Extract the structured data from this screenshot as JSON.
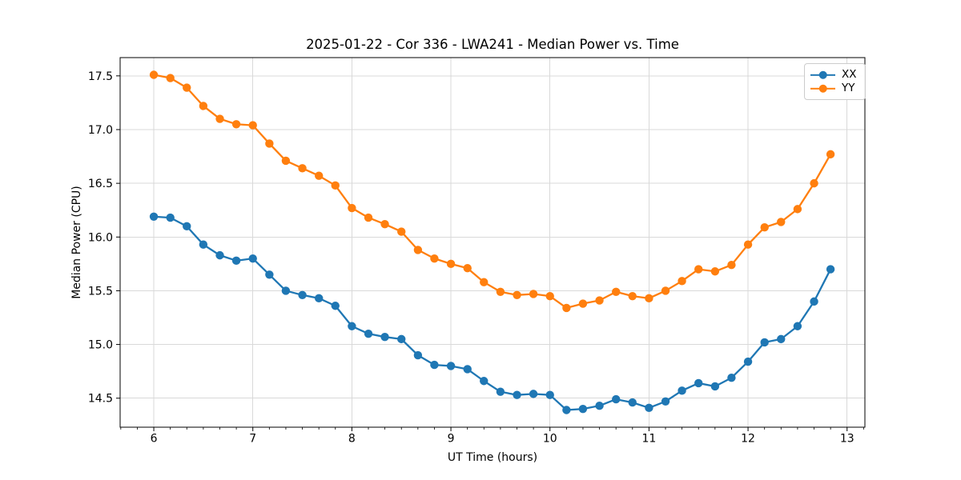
{
  "figure": {
    "title": "2025-01-22 - Cor 336 - LWA241 - Median Power vs. Time",
    "xlabel": "UT Time (hours)",
    "ylabel": "Median Power (CPU)"
  },
  "colors": {
    "background": "#ffffff",
    "grid": "#d9d9d9",
    "spine": "#000000",
    "tick": "#000000",
    "text": "#000000",
    "legend_border": "#cccccc",
    "series_xx": "#1f77b4",
    "series_yy": "#ff7f0e"
  },
  "chart_data": {
    "type": "line",
    "title": "2025-01-22 - Cor 336 - LWA241 - Median Power vs. Time",
    "xlabel": "UT Time (hours)",
    "ylabel": "Median Power (CPU)",
    "xlim": [
      5.66,
      13.18
    ],
    "ylim": [
      14.23,
      17.67
    ],
    "xticks": [
      6,
      7,
      8,
      9,
      10,
      11,
      12,
      13
    ],
    "xtick_labels": [
      "6",
      "7",
      "8",
      "9",
      "10",
      "11",
      "12",
      "13"
    ],
    "yticks": [
      14.5,
      15.0,
      15.5,
      16.0,
      16.5,
      17.0,
      17.5
    ],
    "ytick_labels": [
      "14.5",
      "15.0",
      "15.5",
      "16.0",
      "16.5",
      "17.0",
      "17.5"
    ],
    "x_minor_tick_step": 0.166667,
    "grid": true,
    "legend_position": "upper right",
    "marker": "o",
    "x": [
      6.0,
      6.167,
      6.333,
      6.5,
      6.667,
      6.833,
      7.0,
      7.167,
      7.333,
      7.5,
      7.667,
      7.833,
      8.0,
      8.167,
      8.333,
      8.5,
      8.667,
      8.833,
      9.0,
      9.167,
      9.333,
      9.5,
      9.667,
      9.833,
      10.0,
      10.167,
      10.333,
      10.5,
      10.667,
      10.833,
      11.0,
      11.167,
      11.333,
      11.5,
      11.667,
      11.833,
      12.0,
      12.167,
      12.333,
      12.5,
      12.667,
      12.833
    ],
    "series": [
      {
        "name": "XX",
        "color": "#1f77b4",
        "values": [
          16.19,
          16.18,
          16.1,
          15.93,
          15.83,
          15.78,
          15.8,
          15.65,
          15.5,
          15.46,
          15.43,
          15.36,
          15.17,
          15.1,
          15.07,
          15.05,
          14.9,
          14.81,
          14.8,
          14.77,
          14.66,
          14.56,
          14.53,
          14.54,
          14.53,
          14.39,
          14.4,
          14.43,
          14.49,
          14.46,
          14.41,
          14.47,
          14.57,
          14.64,
          14.61,
          14.69,
          14.84,
          15.02,
          15.05,
          15.17,
          15.4,
          15.7
        ]
      },
      {
        "name": "YY",
        "color": "#ff7f0e",
        "values": [
          17.51,
          17.48,
          17.39,
          17.22,
          17.1,
          17.05,
          17.04,
          16.87,
          16.71,
          16.64,
          16.57,
          16.48,
          16.27,
          16.18,
          16.12,
          16.05,
          15.88,
          15.8,
          15.75,
          15.71,
          15.58,
          15.49,
          15.46,
          15.47,
          15.45,
          15.34,
          15.38,
          15.41,
          15.49,
          15.45,
          15.43,
          15.5,
          15.59,
          15.7,
          15.68,
          15.74,
          15.93,
          16.09,
          16.14,
          16.26,
          16.5,
          16.77
        ]
      }
    ]
  }
}
